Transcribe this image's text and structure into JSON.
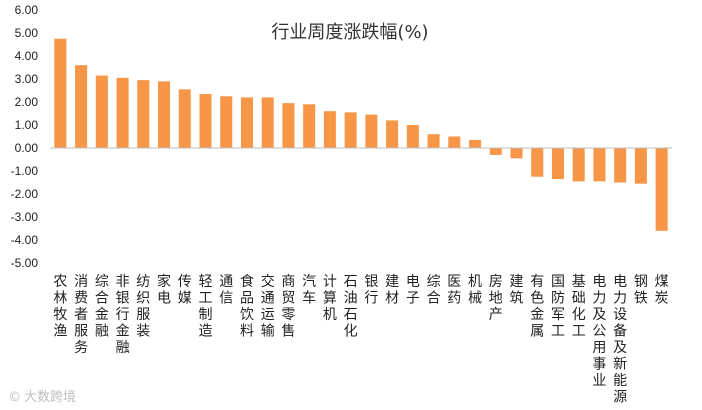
{
  "chart_data": {
    "type": "bar",
    "title": "行业周度涨跌幅(%)",
    "xlabel": "",
    "ylabel": "",
    "ylim": [
      -5,
      6
    ],
    "yticks": [
      "6.00",
      "5.00",
      "4.00",
      "3.00",
      "2.00",
      "1.00",
      "0.00",
      "-1.00",
      "-2.00",
      "-3.00",
      "-4.00",
      "-5.00"
    ],
    "grid": false,
    "legend": "none",
    "bar_color": "#F79646",
    "categories": [
      "农林牧渔",
      "消费者服务",
      "综合金融",
      "非银行金融",
      "纺织服装",
      "家电",
      "传媒",
      "轻工制造",
      "通信",
      "食品饮料",
      "交通运输",
      "商贸零售",
      "汽车",
      "计算机",
      "石油石化",
      "银行",
      "建材",
      "电子",
      "综合",
      "医药",
      "机械",
      "房地产",
      "建筑",
      "有色金属",
      "国防军工",
      "基础化工",
      "电力及公用事业",
      "电力设备及新能源",
      "钢铁",
      "煤炭"
    ],
    "values": [
      4.75,
      3.6,
      3.15,
      3.05,
      2.95,
      2.9,
      2.55,
      2.35,
      2.25,
      2.2,
      2.2,
      1.95,
      1.9,
      1.6,
      1.55,
      1.45,
      1.2,
      1.0,
      0.6,
      0.5,
      0.35,
      -0.3,
      -0.45,
      -1.25,
      -1.35,
      -1.45,
      -1.45,
      -1.5,
      -1.55,
      -3.6
    ]
  },
  "watermark": {
    "symbol": "©",
    "text": "大数跨境"
  }
}
